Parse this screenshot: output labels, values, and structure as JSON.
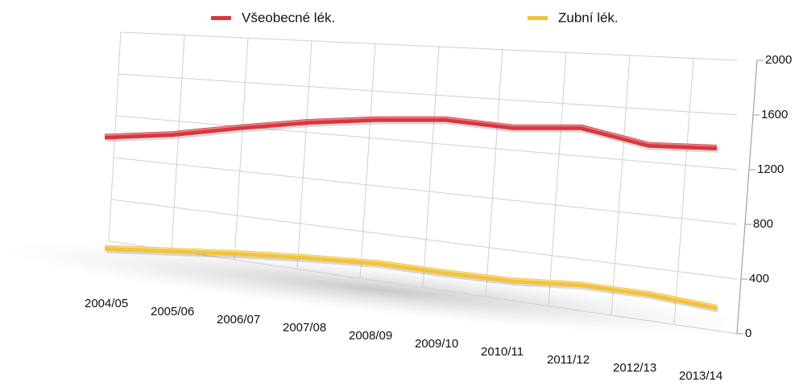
{
  "chart_data": {
    "type": "line",
    "categories": [
      "2004/05",
      "2005/06",
      "2006/07",
      "2007/08",
      "2008/09",
      "2009/10",
      "2010/11",
      "2011/12",
      "2012/13",
      "2013/14"
    ],
    "series": [
      {
        "name": "Všeobecné lék.",
        "color": "#d9363e",
        "values": [
          1460,
          1480,
          1530,
          1570,
          1590,
          1590,
          1530,
          1530,
          1400,
          1380
        ]
      },
      {
        "name": "Zubní lék.",
        "color": "#f2c23a",
        "values": [
          640,
          620,
          600,
          570,
          530,
          460,
          400,
          370,
          300,
          200
        ]
      }
    ],
    "ylim": [
      0,
      2000
    ],
    "yticks": [
      0,
      400,
      800,
      1200,
      1600,
      2000
    ],
    "grid": true,
    "legend": "top"
  }
}
